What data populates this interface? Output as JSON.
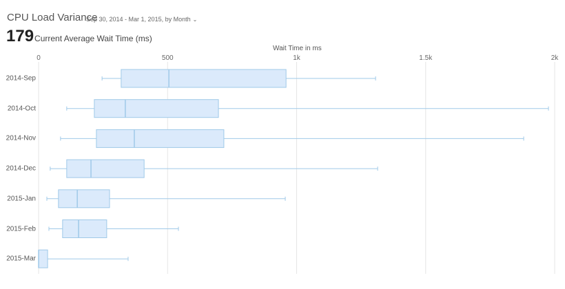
{
  "header": {
    "title": "CPU Load Variance",
    "date_range": "Sep 30, 2014 - Mar 1, 2015, by Month",
    "chevron_icon": "chevron-down-icon"
  },
  "kpi": {
    "value": "179",
    "label": "Current Average Wait Time (ms)"
  },
  "colors": {
    "box_fill": "#dbeafb",
    "box_stroke": "#9fc9e8",
    "grid": "#e6e6e6"
  },
  "chart_data": {
    "type": "boxplot",
    "orientation": "horizontal",
    "title": "CPU Load Variance",
    "xlabel": "Wait Time in ms",
    "ylabel": "",
    "xlim": [
      0,
      2000
    ],
    "x_ticks": [
      0,
      500,
      1000,
      1500,
      2000
    ],
    "x_tick_labels": [
      "0",
      "500",
      "1k",
      "1.5k",
      "2k"
    ],
    "grid": true,
    "categories": [
      "2014-Sep",
      "2014-Oct",
      "2014-Nov",
      "2014-Dec",
      "2015-Jan",
      "2015-Feb",
      "2015-Mar"
    ],
    "series": [
      {
        "name": "2014-Sep",
        "low": 246,
        "q1": 320,
        "median": 505,
        "q3": 959,
        "high": 1306
      },
      {
        "name": "2014-Oct",
        "low": 109,
        "q1": 216,
        "median": 336,
        "q3": 697,
        "high": 1976
      },
      {
        "name": "2014-Nov",
        "low": 85,
        "q1": 224,
        "median": 371,
        "q3": 718,
        "high": 1880
      },
      {
        "name": "2014-Dec",
        "low": 45,
        "q1": 109,
        "median": 203,
        "q3": 409,
        "high": 1314
      },
      {
        "name": "2015-Jan",
        "low": 32,
        "q1": 77,
        "median": 150,
        "q3": 275,
        "high": 956
      },
      {
        "name": "2015-Feb",
        "low": 40,
        "q1": 93,
        "median": 155,
        "q3": 264,
        "high": 542
      },
      {
        "name": "2015-Mar",
        "low": 0,
        "q1": 0,
        "median": 0,
        "q3": 35,
        "high": 347
      }
    ]
  }
}
